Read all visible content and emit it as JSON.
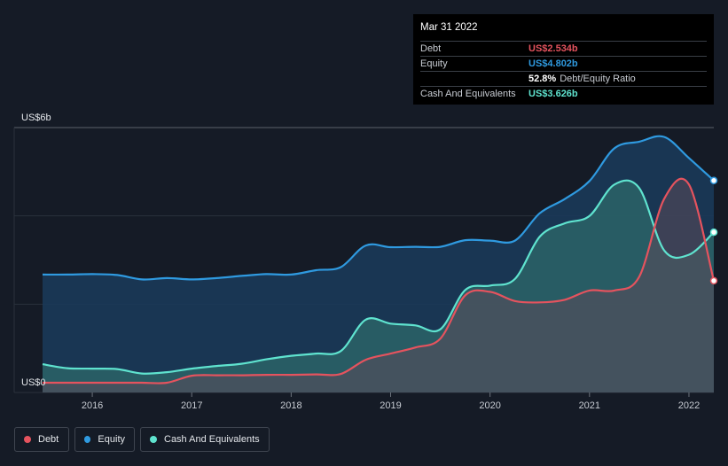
{
  "tooltip": {
    "date": "Mar 31 2022",
    "rows": [
      {
        "label": "Debt",
        "value": "US$2.534b",
        "color": "#e5535e"
      },
      {
        "label": "Equity",
        "value": "US$4.802b",
        "color": "#2f9ae0"
      },
      {
        "label": "",
        "value": "52.8%",
        "suffix": "Debt/Equity Ratio",
        "color": "#ffffff"
      },
      {
        "label": "Cash And Equivalents",
        "value": "US$3.626b",
        "color": "#5fe3cf"
      }
    ]
  },
  "legend": [
    {
      "label": "Debt",
      "color": "#e5535e"
    },
    {
      "label": "Equity",
      "color": "#2f9ae0"
    },
    {
      "label": "Cash And Equivalents",
      "color": "#5fe3cf"
    }
  ],
  "chart_data": {
    "type": "area",
    "y_top_label": "US$6b",
    "y_bottom_label": "US$0",
    "ylim": [
      0,
      6
    ],
    "xlim": [
      2015.5,
      2022.25
    ],
    "x_ticks": [
      "2016",
      "2017",
      "2018",
      "2019",
      "2020",
      "2021",
      "2022"
    ],
    "grid": true,
    "series": [
      {
        "name": "Equity",
        "color": "#2f9ae0",
        "x": [
          2015.5,
          2015.75,
          2016.0,
          2016.25,
          2016.5,
          2016.75,
          2017.0,
          2017.25,
          2017.5,
          2017.75,
          2018.0,
          2018.25,
          2018.5,
          2018.75,
          2019.0,
          2019.25,
          2019.5,
          2019.75,
          2020.0,
          2020.25,
          2020.5,
          2020.75,
          2021.0,
          2021.25,
          2021.5,
          2021.75,
          2022.0,
          2022.25
        ],
        "values": [
          2.67,
          2.67,
          2.68,
          2.66,
          2.56,
          2.59,
          2.56,
          2.59,
          2.64,
          2.68,
          2.67,
          2.77,
          2.84,
          3.33,
          3.29,
          3.3,
          3.3,
          3.45,
          3.44,
          3.44,
          4.06,
          4.38,
          4.79,
          5.53,
          5.68,
          5.79,
          5.31,
          4.8
        ]
      },
      {
        "name": "Cash And Equivalents",
        "color": "#5fe3cf",
        "x": [
          2015.5,
          2015.75,
          2016.0,
          2016.25,
          2016.5,
          2016.75,
          2017.0,
          2017.25,
          2017.5,
          2017.75,
          2018.0,
          2018.25,
          2018.5,
          2018.75,
          2019.0,
          2019.25,
          2019.5,
          2019.75,
          2020.0,
          2020.25,
          2020.5,
          2020.75,
          2021.0,
          2021.25,
          2021.5,
          2021.75,
          2022.0,
          2022.25
        ],
        "values": [
          0.64,
          0.55,
          0.54,
          0.53,
          0.43,
          0.46,
          0.54,
          0.6,
          0.65,
          0.75,
          0.83,
          0.88,
          0.94,
          1.65,
          1.56,
          1.52,
          1.43,
          2.32,
          2.42,
          2.57,
          3.53,
          3.83,
          4.0,
          4.71,
          4.63,
          3.22,
          3.12,
          3.63
        ]
      },
      {
        "name": "Debt",
        "color": "#e5535e",
        "x": [
          2015.5,
          2015.75,
          2016.0,
          2016.25,
          2016.5,
          2016.75,
          2017.0,
          2017.25,
          2017.5,
          2017.75,
          2018.0,
          2018.25,
          2018.5,
          2018.75,
          2019.0,
          2019.25,
          2019.5,
          2019.75,
          2020.0,
          2020.25,
          2020.5,
          2020.75,
          2021.0,
          2021.25,
          2021.5,
          2021.75,
          2022.0,
          2022.25
        ],
        "values": [
          0.22,
          0.22,
          0.22,
          0.22,
          0.22,
          0.22,
          0.38,
          0.39,
          0.39,
          0.4,
          0.4,
          0.41,
          0.42,
          0.74,
          0.88,
          1.02,
          1.22,
          2.2,
          2.28,
          2.07,
          2.04,
          2.1,
          2.31,
          2.31,
          2.62,
          4.38,
          4.71,
          2.53
        ]
      }
    ]
  }
}
